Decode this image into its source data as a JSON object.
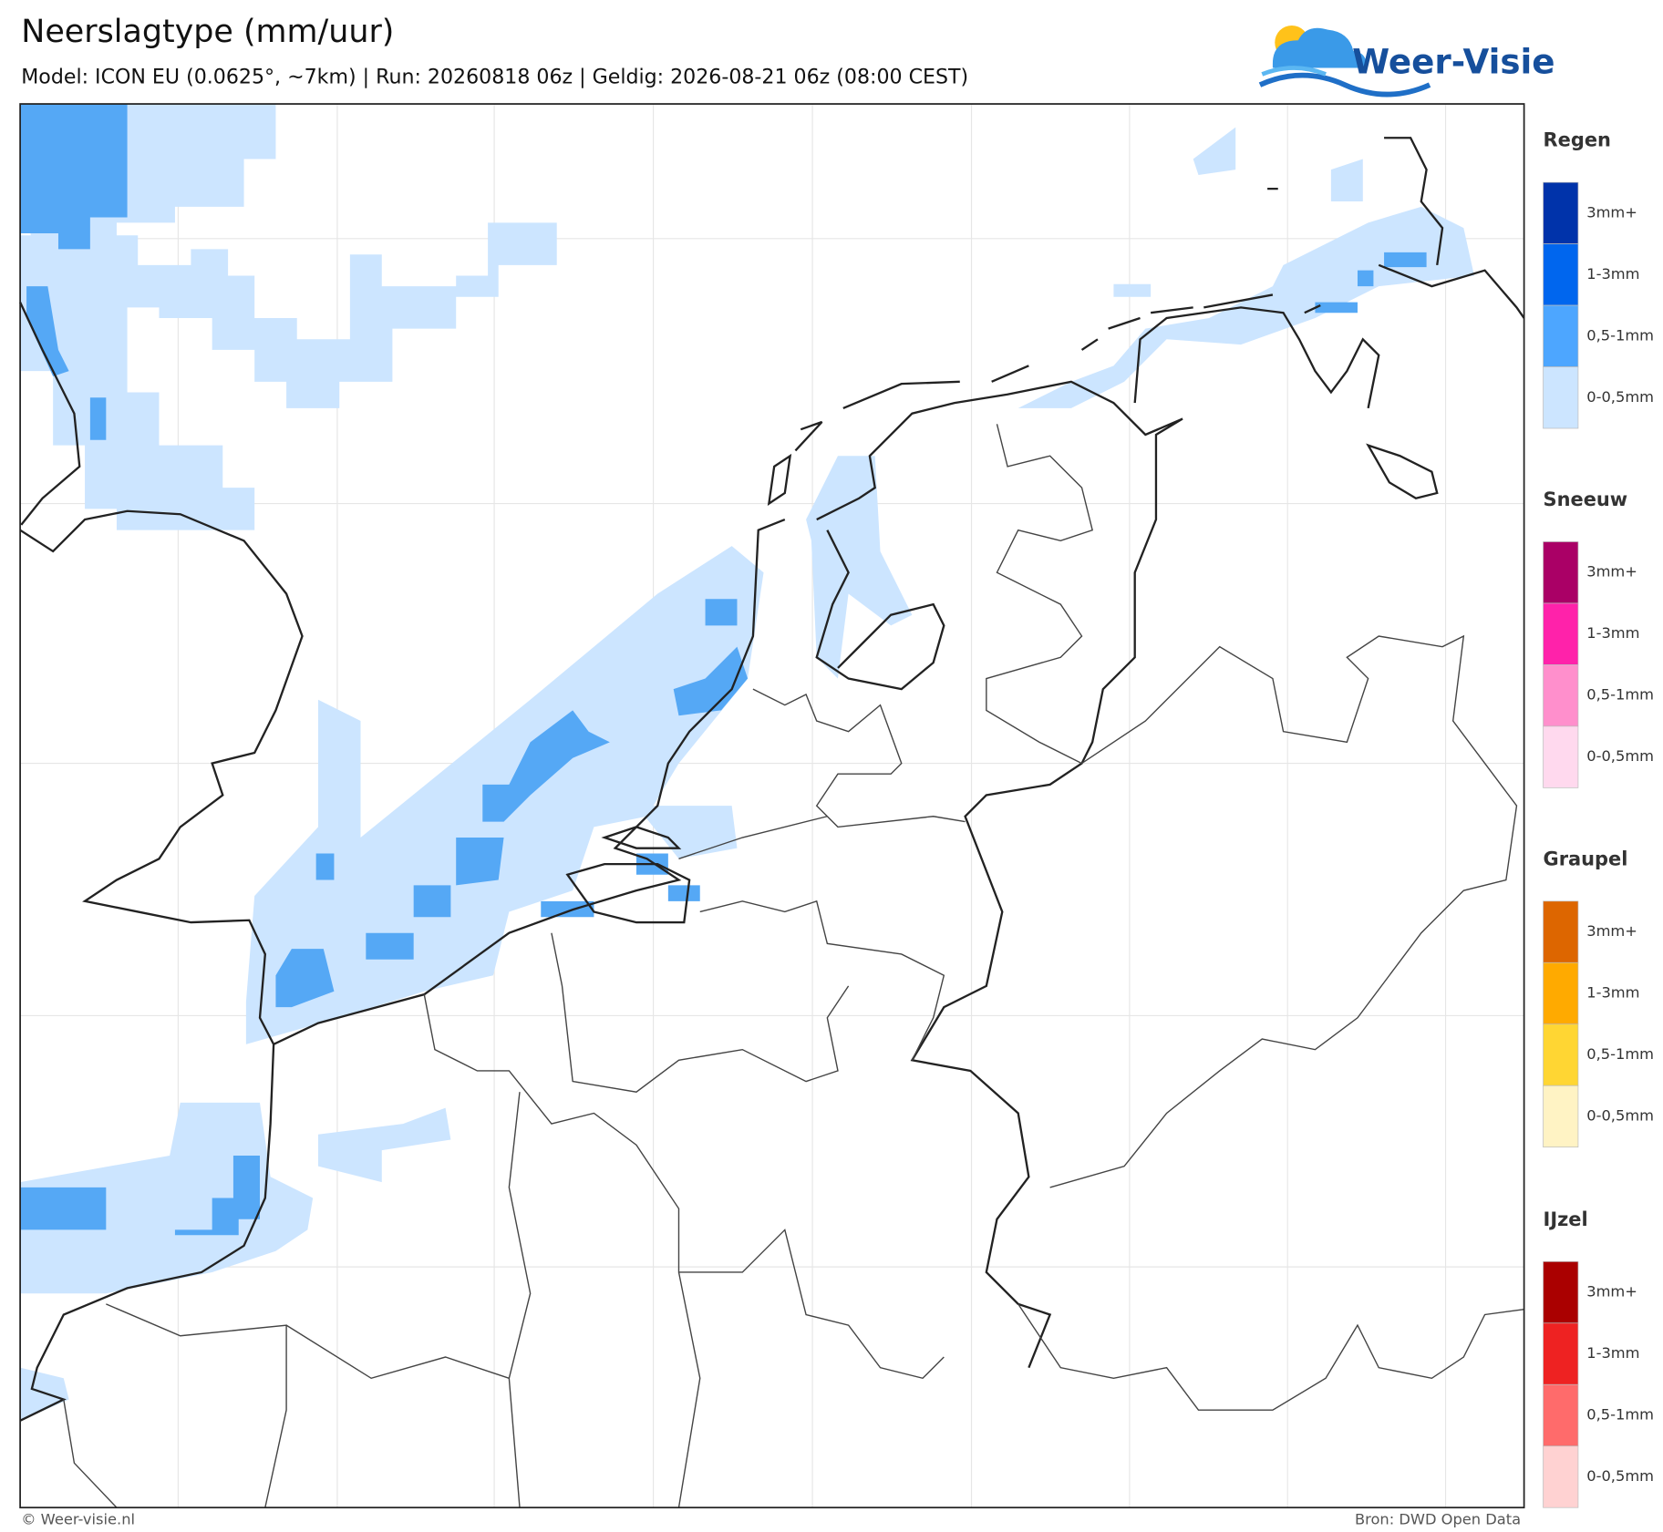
{
  "header": {
    "title": "Neerslagtype (mm/uur)",
    "subtitle": "Model: ICON EU (0.0625°, ~7km)  |  Run: 20260818 06z  |  Geldig: 2026-08-21 06z (08:00 CEST)",
    "logo": "Weer-Visie"
  },
  "legend": [
    {
      "name": "Regen",
      "items": [
        {
          "label": "3mm+",
          "color": "#0033aa"
        },
        {
          "label": "1-3mm",
          "color": "#0066ee"
        },
        {
          "label": "0,5-1mm",
          "color": "#4da6ff"
        },
        {
          "label": "0-0,5mm",
          "color": "#cce5ff"
        }
      ]
    },
    {
      "name": "Sneeuw",
      "items": [
        {
          "label": "3mm+",
          "color": "#aa0066"
        },
        {
          "label": "1-3mm",
          "color": "#ff22aa"
        },
        {
          "label": "0,5-1mm",
          "color": "#ff8fcc"
        },
        {
          "label": "0-0,5mm",
          "color": "#ffd9ee"
        }
      ]
    },
    {
      "name": "Graupel",
      "items": [
        {
          "label": "3mm+",
          "color": "#dd6600"
        },
        {
          "label": "1-3mm",
          "color": "#ffaa00"
        },
        {
          "label": "0,5-1mm",
          "color": "#ffd633"
        },
        {
          "label": "0-0,5mm",
          "color": "#fff3c4"
        }
      ]
    },
    {
      "name": "IJzel",
      "items": [
        {
          "label": "3mm+",
          "color": "#aa0000"
        },
        {
          "label": "1-3mm",
          "color": "#ee2222"
        },
        {
          "label": "0,5-1mm",
          "color": "#ff6b6b"
        },
        {
          "label": "0-0,5mm",
          "color": "#ffd2d2"
        }
      ]
    }
  ],
  "footer": {
    "left": "© Weer-visie.nl",
    "right": "Bron: DWD Open Data"
  }
}
